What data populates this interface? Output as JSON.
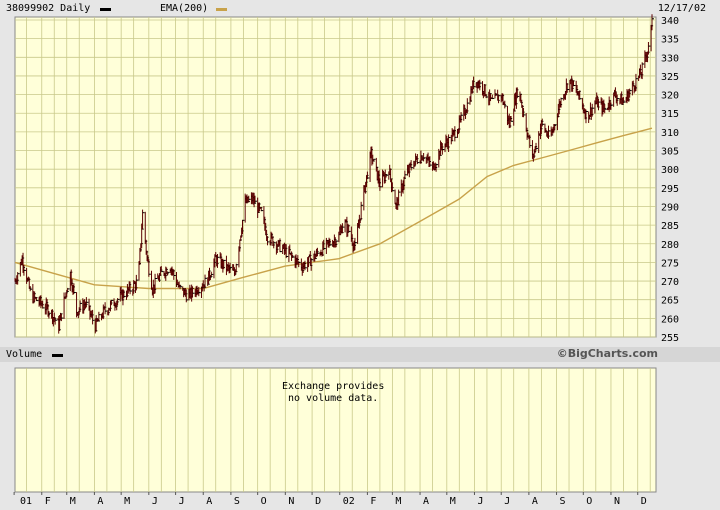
{
  "header": {
    "symbol_label": "38099902 Daily",
    "ema_label": "EMA(200)",
    "date_label": "12/17/02",
    "price_color": "#000000",
    "ema_color": "#c8a24a"
  },
  "volume_panel": {
    "label": "Volume",
    "brand": "©BigCharts.com",
    "message_line1": "Exchange provides",
    "message_line2": "no volume data."
  },
  "chart_data": {
    "type": "line",
    "title": "38099902 Daily",
    "date_range": [
      "2001-01-02",
      "2002-12-17"
    ],
    "ylim": [
      255,
      340
    ],
    "yticks": [
      255,
      260,
      265,
      270,
      275,
      280,
      285,
      290,
      295,
      300,
      305,
      310,
      315,
      320,
      325,
      330,
      335,
      340
    ],
    "xticks": [
      "01",
      "F",
      "M",
      "A",
      "M",
      "J",
      "J",
      "A",
      "S",
      "O",
      "N",
      "D",
      "02",
      "F",
      "M",
      "A",
      "M",
      "J",
      "J",
      "A",
      "S",
      "O",
      "N",
      "D"
    ],
    "grid": true,
    "series": [
      {
        "name": "38099902 Daily",
        "style": "high-low bars",
        "color": "#5a0000",
        "points": [
          [
            "2001-01-02",
            270
          ],
          [
            "2001-01-10",
            276
          ],
          [
            "2001-01-20",
            266
          ],
          [
            "2001-01-31",
            264
          ],
          [
            "2001-02-10",
            262
          ],
          [
            "2001-02-20",
            258
          ],
          [
            "2001-03-01",
            268
          ],
          [
            "2001-03-05",
            272
          ],
          [
            "2001-03-12",
            262
          ],
          [
            "2001-03-22",
            264
          ],
          [
            "2001-04-02",
            258
          ],
          [
            "2001-04-12",
            262
          ],
          [
            "2001-04-22",
            264
          ],
          [
            "2001-05-01",
            266
          ],
          [
            "2001-05-12",
            268
          ],
          [
            "2001-05-20",
            270
          ],
          [
            "2001-05-25",
            288
          ],
          [
            "2001-05-30",
            276
          ],
          [
            "2001-06-05",
            268
          ],
          [
            "2001-06-15",
            272
          ],
          [
            "2001-06-25",
            274
          ],
          [
            "2001-07-05",
            268
          ],
          [
            "2001-07-15",
            266
          ],
          [
            "2001-07-25",
            268
          ],
          [
            "2001-08-05",
            270
          ],
          [
            "2001-08-15",
            276
          ],
          [
            "2001-08-25",
            274
          ],
          [
            "2001-09-05",
            272
          ],
          [
            "2001-09-17",
            291
          ],
          [
            "2001-09-25",
            292
          ],
          [
            "2001-10-05",
            288
          ],
          [
            "2001-10-12",
            282
          ],
          [
            "2001-10-22",
            280
          ],
          [
            "2001-11-01",
            278
          ],
          [
            "2001-11-10",
            276
          ],
          [
            "2001-11-20",
            274
          ],
          [
            "2001-12-01",
            276
          ],
          [
            "2001-12-10",
            278
          ],
          [
            "2001-12-20",
            280
          ],
          [
            "2001-12-31",
            282
          ],
          [
            "2002-01-05",
            286
          ],
          [
            "2002-01-12",
            283
          ],
          [
            "2002-01-18",
            279
          ],
          [
            "2002-01-28",
            294
          ],
          [
            "2002-02-05",
            304
          ],
          [
            "2002-02-15",
            296
          ],
          [
            "2002-02-25",
            300
          ],
          [
            "2002-03-05",
            290
          ],
          [
            "2002-03-15",
            298
          ],
          [
            "2002-03-25",
            302
          ],
          [
            "2002-04-05",
            304
          ],
          [
            "2002-04-15",
            300
          ],
          [
            "2002-04-25",
            306
          ],
          [
            "2002-05-05",
            308
          ],
          [
            "2002-05-15",
            312
          ],
          [
            "2002-05-25",
            318
          ],
          [
            "2002-06-01",
            324
          ],
          [
            "2002-06-10",
            322
          ],
          [
            "2002-06-20",
            318
          ],
          [
            "2002-07-01",
            320
          ],
          [
            "2002-07-10",
            312
          ],
          [
            "2002-07-20",
            322
          ],
          [
            "2002-07-30",
            310
          ],
          [
            "2002-08-05",
            303
          ],
          [
            "2002-08-15",
            312
          ],
          [
            "2002-08-25",
            308
          ],
          [
            "2002-09-05",
            318
          ],
          [
            "2002-09-15",
            324
          ],
          [
            "2002-09-25",
            320
          ],
          [
            "2002-10-05",
            314
          ],
          [
            "2002-10-15",
            318
          ],
          [
            "2002-10-25",
            316
          ],
          [
            "2002-11-05",
            320
          ],
          [
            "2002-11-15",
            318
          ],
          [
            "2002-11-25",
            322
          ],
          [
            "2002-12-05",
            326
          ],
          [
            "2002-12-12",
            332
          ],
          [
            "2002-12-17",
            339
          ]
        ]
      },
      {
        "name": "EMA(200)",
        "color": "#c8a24a",
        "points": [
          [
            "2001-01-02",
            275
          ],
          [
            "2001-02-15",
            272
          ],
          [
            "2001-04-01",
            269
          ],
          [
            "2001-06-01",
            268
          ],
          [
            "2001-08-01",
            268
          ],
          [
            "2001-09-15",
            271
          ],
          [
            "2001-11-01",
            274
          ],
          [
            "2001-12-31",
            276
          ],
          [
            "2002-02-15",
            280
          ],
          [
            "2002-04-01",
            286
          ],
          [
            "2002-05-15",
            292
          ],
          [
            "2002-06-15",
            298
          ],
          [
            "2002-07-15",
            301
          ],
          [
            "2002-08-15",
            303
          ],
          [
            "2002-09-15",
            305
          ],
          [
            "2002-10-15",
            307
          ],
          [
            "2002-11-15",
            309
          ],
          [
            "2002-12-17",
            311
          ]
        ]
      }
    ]
  }
}
